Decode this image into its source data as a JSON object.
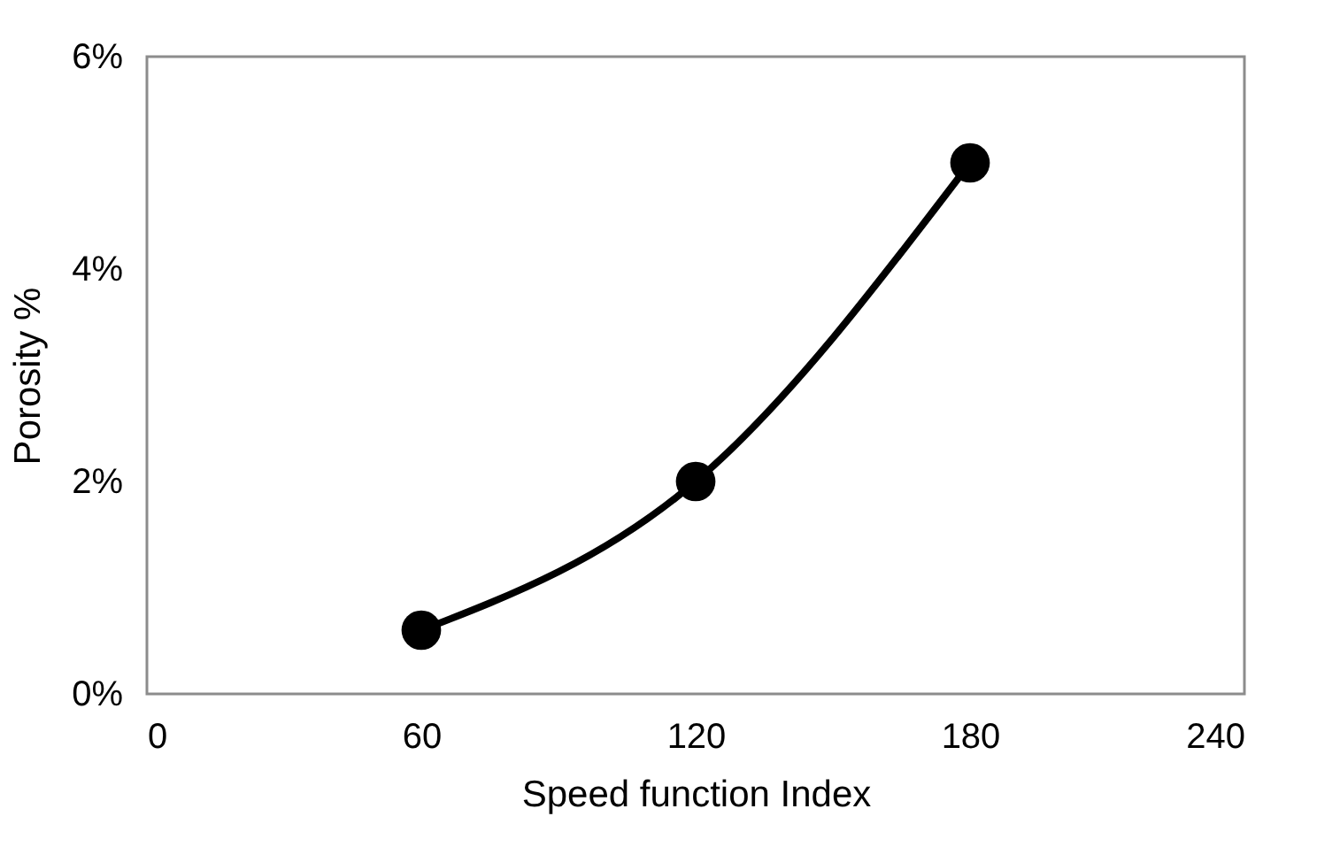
{
  "chart_data": {
    "type": "line",
    "xlabel": "Speed function Index",
    "ylabel": "Porosity %",
    "x": [
      60,
      120,
      180
    ],
    "series": [
      {
        "color": "#000000",
        "values": [
          0.6,
          2.0,
          5.0
        ]
      }
    ],
    "xlim": [
      0,
      240
    ],
    "xticks": [
      0,
      60,
      120,
      180,
      240
    ],
    "ylim": [
      0,
      6
    ],
    "yticks": [
      {
        "value": 0,
        "label": "0%"
      },
      {
        "value": 2,
        "label": "2%"
      },
      {
        "value": 4,
        "label": "4%"
      },
      {
        "value": 6,
        "label": "6%"
      }
    ],
    "marker": "circle",
    "line_style": "solid"
  }
}
